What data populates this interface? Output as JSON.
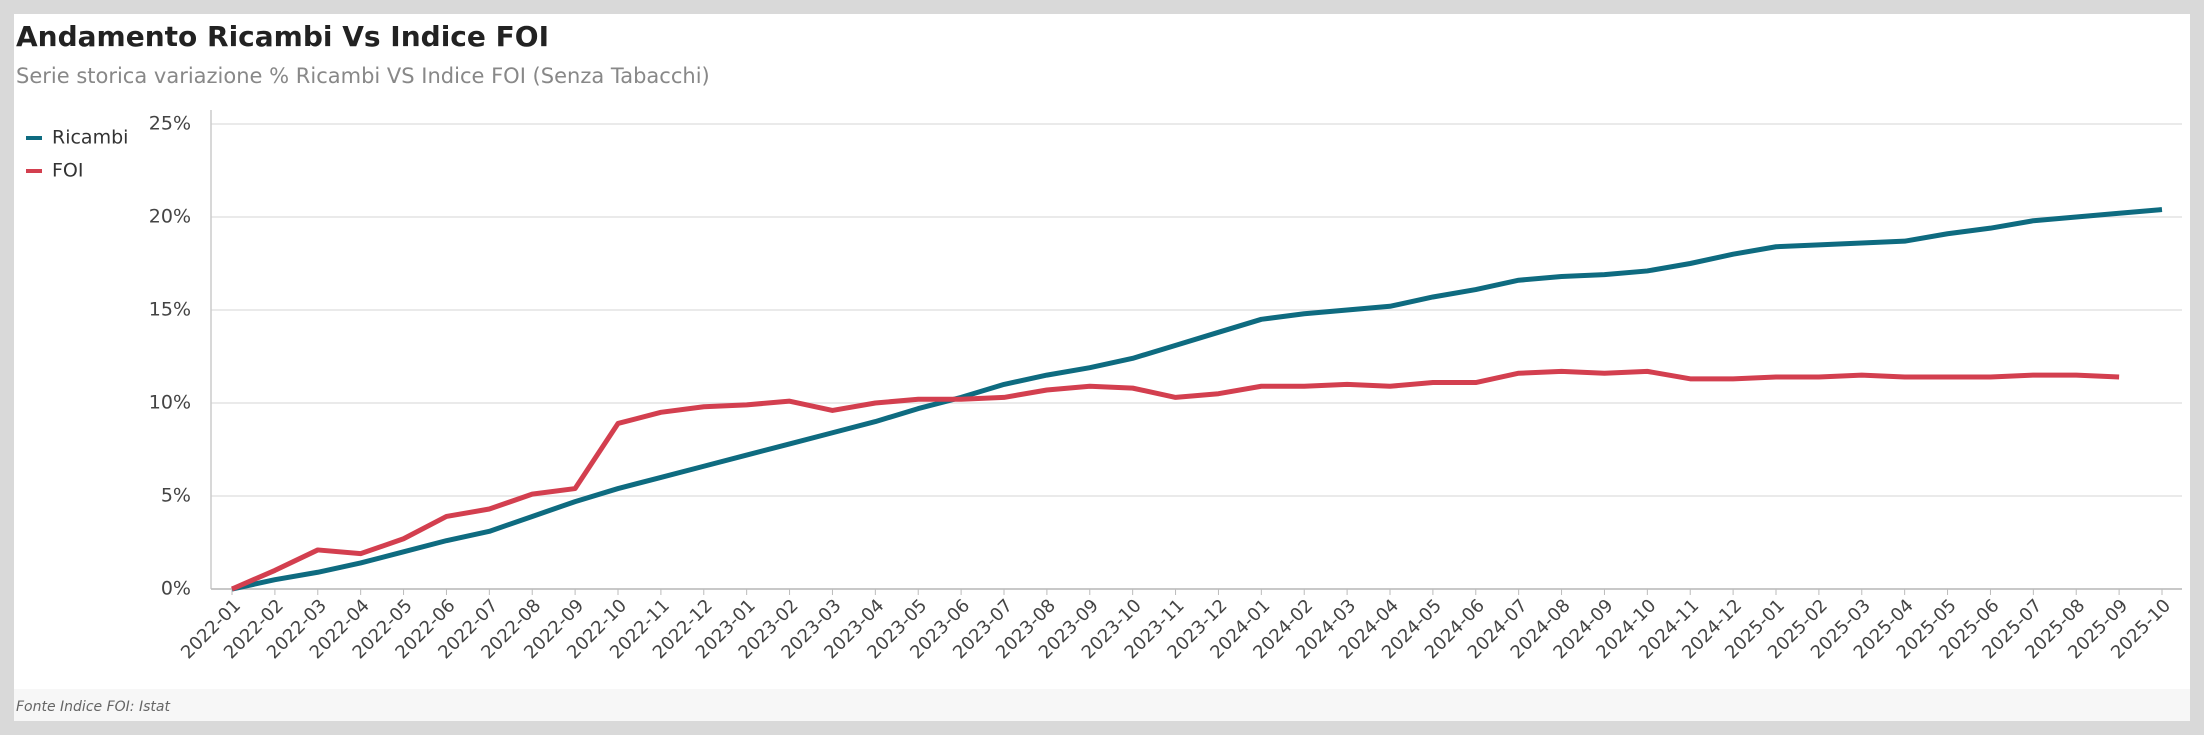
{
  "chart_data": {
    "type": "line",
    "title": "Andamento Ricambi Vs Indice FOI",
    "subtitle": "Serie storica variazione % Ricambi VS Indice FOI (Senza Tabacchi)",
    "source": "Fonte Indice FOI: Istat",
    "categories": [
      "2022-01",
      "2022-02",
      "2022-03",
      "2022-04",
      "2022-05",
      "2022-06",
      "2022-07",
      "2022-08",
      "2022-09",
      "2022-10",
      "2022-11",
      "2022-12",
      "2023-01",
      "2023-02",
      "2023-03",
      "2023-04",
      "2023-05",
      "2023-06",
      "2023-07",
      "2023-08",
      "2023-09",
      "2023-10",
      "2023-11",
      "2023-12",
      "2024-01",
      "2024-02",
      "2024-03",
      "2024-04",
      "2024-05",
      "2024-06",
      "2024-07",
      "2024-08",
      "2024-09",
      "2024-10",
      "2024-11",
      "2024-12",
      "2025-01",
      "2025-02",
      "2025-03",
      "2025-04",
      "2025-05",
      "2025-06",
      "2025-07",
      "2025-08",
      "2025-09",
      "2025-10"
    ],
    "series": [
      {
        "name": "Ricambi",
        "color": "#0e6b80",
        "values": [
          0,
          0.5,
          0.9,
          1.4,
          2.0,
          2.6,
          3.1,
          3.9,
          4.7,
          5.4,
          6.0,
          6.6,
          7.2,
          7.8,
          8.4,
          9.0,
          9.7,
          10.3,
          11.0,
          11.5,
          11.9,
          12.4,
          13.1,
          13.8,
          14.5,
          14.8,
          15.0,
          15.2,
          15.7,
          16.1,
          16.6,
          16.8,
          16.9,
          17.1,
          17.5,
          18.0,
          18.4,
          18.5,
          18.6,
          18.7,
          19.1,
          19.4,
          19.8,
          20.0,
          20.2,
          20.4
        ]
      },
      {
        "name": "FOI",
        "color": "#d33f4f",
        "values": [
          0,
          1.0,
          2.1,
          1.9,
          2.7,
          3.9,
          4.3,
          5.1,
          5.4,
          8.9,
          9.5,
          9.8,
          9.9,
          10.1,
          9.6,
          10.0,
          10.2,
          10.2,
          10.3,
          10.7,
          10.9,
          10.8,
          10.3,
          10.5,
          10.9,
          10.9,
          11.0,
          10.9,
          11.1,
          11.1,
          11.6,
          11.7,
          11.6,
          11.7,
          11.3,
          11.3,
          11.4,
          11.4,
          11.5,
          11.4,
          11.4,
          11.4,
          11.5,
          11.5,
          11.4,
          null
        ]
      }
    ],
    "ylim": [
      0,
      25
    ],
    "yticks": [
      {
        "value": 0,
        "label": "0%"
      },
      {
        "value": 5,
        "label": "5%"
      },
      {
        "value": 10,
        "label": "10%"
      },
      {
        "value": 15,
        "label": "15%"
      },
      {
        "value": 20,
        "label": "20%"
      },
      {
        "value": 25,
        "label": "25%"
      }
    ],
    "grid": true,
    "legend": "left"
  }
}
